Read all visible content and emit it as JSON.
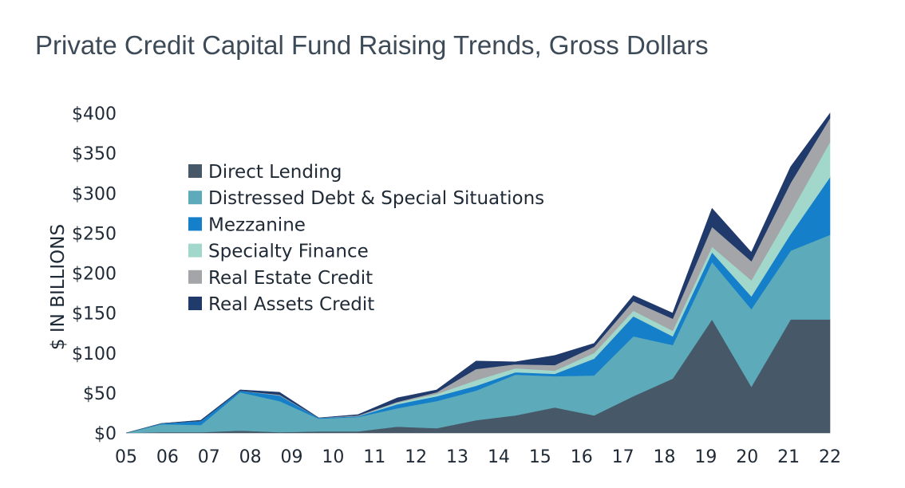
{
  "title": "Private Credit Capital Fund Raising Trends, Gross Dollars",
  "chart_data": {
    "type": "area",
    "stacked": true,
    "ylabel": "$ IN BILLIONS",
    "ylim": [
      0,
      400
    ],
    "yticks": [
      0,
      50,
      100,
      150,
      200,
      250,
      300,
      350,
      400
    ],
    "ytick_labels": [
      "$0",
      "$50",
      "$100",
      "$150",
      "$200",
      "$250",
      "$300",
      "$350",
      "$400"
    ],
    "x": [
      2005,
      2005.9,
      2006.9,
      2007.9,
      2008.9,
      2009.9,
      2010.9,
      2011.9,
      2012.9,
      2013.9,
      2014.9,
      2015.9,
      2016.9,
      2017.9,
      2018.9,
      2019.9,
      2020.9,
      2021.9,
      2022.9
    ],
    "xtick_labels": [
      "05",
      "06",
      "07",
      "08",
      "09",
      "10",
      "11",
      "12",
      "13",
      "14",
      "15",
      "16",
      "17",
      "18",
      "19",
      "20",
      "21",
      "22"
    ],
    "series": [
      {
        "name": "Direct Lending",
        "color": "#475968",
        "values": [
          0,
          1,
          1,
          3,
          1,
          2,
          2,
          8,
          6,
          16,
          22,
          32,
          22,
          46,
          68,
          142,
          58,
          142,
          142
        ]
      },
      {
        "name": "Distressed Debt & Special Situations",
        "color": "#5dabba",
        "values": [
          0,
          10,
          9,
          48,
          39,
          16,
          18,
          23,
          34,
          37,
          51,
          39,
          50,
          75,
          42,
          72,
          97,
          86,
          106
        ]
      },
      {
        "name": "Mezzanine",
        "color": "#157fca",
        "values": [
          0,
          1,
          5,
          2,
          7,
          1,
          1,
          5,
          6,
          6,
          3,
          3,
          21,
          25,
          11,
          12,
          16,
          21,
          72
        ]
      },
      {
        "name": "Specialty Finance",
        "color": "#a2d8cc",
        "values": [
          0,
          0,
          0,
          0,
          0,
          0,
          0,
          2,
          3,
          7,
          5,
          4,
          7,
          7,
          7,
          7,
          20,
          27,
          44
        ]
      },
      {
        "name": "Real Estate Credit",
        "color": "#a3a5a8",
        "values": [
          0,
          0,
          0,
          0,
          1,
          0,
          1,
          1,
          2,
          14,
          5,
          7,
          8,
          12,
          15,
          25,
          24,
          37,
          30
        ]
      },
      {
        "name": "Real Assets Credit",
        "color": "#1f3a6b",
        "values": [
          0,
          0,
          1,
          1,
          3,
          0,
          1,
          5,
          3,
          10,
          3,
          12,
          4,
          7,
          7,
          23,
          11,
          20,
          6
        ]
      }
    ],
    "legend_position": "top-left",
    "grid": false
  }
}
